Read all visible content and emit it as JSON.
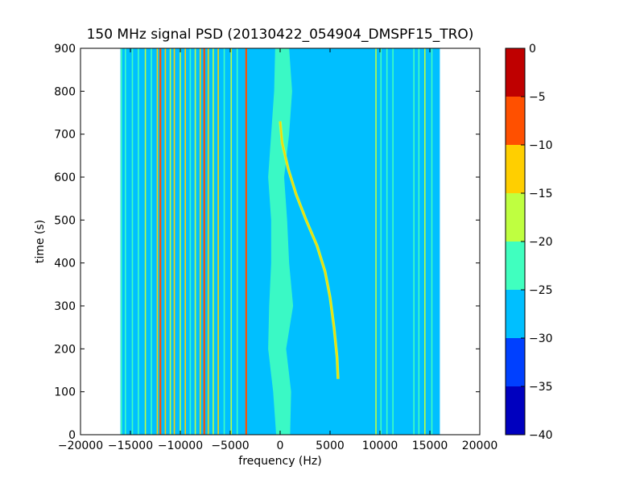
{
  "chart_data": {
    "type": "heatmap",
    "title": "150 MHz signal PSD (20130422_054904_DMSPF15_TRO)",
    "xlabel": "frequency (Hz)",
    "ylabel": "time (s)",
    "xlim": [
      -20000,
      20000
    ],
    "ylim": [
      0,
      900
    ],
    "data_extent_x": [
      -16000,
      16000
    ],
    "x_ticks": [
      -20000,
      -15000,
      -10000,
      -5000,
      0,
      5000,
      10000,
      15000,
      20000
    ],
    "x_tick_labels": [
      "−20000",
      "−15000",
      "−10000",
      "−5000",
      "0",
      "5000",
      "10000",
      "15000",
      "20000"
    ],
    "y_ticks": [
      0,
      100,
      200,
      300,
      400,
      500,
      600,
      700,
      800,
      900
    ],
    "y_tick_labels": [
      "0",
      "100",
      "200",
      "300",
      "400",
      "500",
      "600",
      "700",
      "800",
      "900"
    ],
    "background_level_dB": -27.5,
    "colorbar": {
      "levels": [
        -40,
        -35,
        -30,
        -25,
        -20,
        -15,
        -10,
        -5,
        0
      ],
      "tick_labels": [
        "−40",
        "−35",
        "−30",
        "−25",
        "−20",
        "−15",
        "−10",
        "−5",
        "0"
      ],
      "colors": [
        "#0000bf",
        "#0040ff",
        "#00bfff",
        "#40ffbf",
        "#bfff40",
        "#ffcf00",
        "#ff5000",
        "#bf0000"
      ]
    },
    "steady_tones": [
      {
        "freq_hz": -15900,
        "level_db": -22.5
      },
      {
        "freq_hz": -15500,
        "level_db": -22.5
      },
      {
        "freq_hz": -14800,
        "level_db": -22.5
      },
      {
        "freq_hz": -14200,
        "level_db": -22.5
      },
      {
        "freq_hz": -13500,
        "level_db": -17.5
      },
      {
        "freq_hz": -12900,
        "level_db": -22.5
      },
      {
        "freq_hz": -12300,
        "level_db": -12.5
      },
      {
        "freq_hz": -12000,
        "level_db": -7.5
      },
      {
        "freq_hz": -11500,
        "level_db": -12.5
      },
      {
        "freq_hz": -11000,
        "level_db": -17.5
      },
      {
        "freq_hz": -10600,
        "level_db": -12.5
      },
      {
        "freq_hz": -10000,
        "level_db": -17.5
      },
      {
        "freq_hz": -9500,
        "level_db": -12.5
      },
      {
        "freq_hz": -9000,
        "level_db": -22.5
      },
      {
        "freq_hz": -8500,
        "level_db": -17.5
      },
      {
        "freq_hz": -8000,
        "level_db": -12.5
      },
      {
        "freq_hz": -7600,
        "level_db": -7.5
      },
      {
        "freq_hz": -7200,
        "level_db": -12.5
      },
      {
        "freq_hz": -6700,
        "level_db": -17.5
      },
      {
        "freq_hz": -6200,
        "level_db": -12.5
      },
      {
        "freq_hz": -5600,
        "level_db": -22.5
      },
      {
        "freq_hz": -4900,
        "level_db": -17.5
      },
      {
        "freq_hz": -4300,
        "level_db": -22.5
      },
      {
        "freq_hz": -3400,
        "level_db": -7.5
      },
      {
        "freq_hz": 9600,
        "level_db": -17.5
      },
      {
        "freq_hz": 10100,
        "level_db": -22.5
      },
      {
        "freq_hz": 10700,
        "level_db": -22.5
      },
      {
        "freq_hz": 11300,
        "level_db": -22.5
      },
      {
        "freq_hz": 13400,
        "level_db": -22.5
      },
      {
        "freq_hz": 13900,
        "level_db": -22.5
      },
      {
        "freq_hz": 14500,
        "level_db": -17.5
      },
      {
        "freq_hz": 15200,
        "level_db": -22.5
      }
    ],
    "doppler_track": {
      "level_db": -12.5,
      "points": [
        {
          "t_s": 130,
          "freq_hz": 5800
        },
        {
          "t_s": 180,
          "freq_hz": 5700
        },
        {
          "t_s": 250,
          "freq_hz": 5400
        },
        {
          "t_s": 320,
          "freq_hz": 5000
        },
        {
          "t_s": 380,
          "freq_hz": 4500
        },
        {
          "t_s": 440,
          "freq_hz": 3700
        },
        {
          "t_s": 500,
          "freq_hz": 2600
        },
        {
          "t_s": 560,
          "freq_hz": 1600
        },
        {
          "t_s": 620,
          "freq_hz": 800
        },
        {
          "t_s": 680,
          "freq_hz": 200
        },
        {
          "t_s": 730,
          "freq_hz": 0
        }
      ]
    },
    "carrier_noise_band": {
      "level_db": -22.5,
      "points": [
        {
          "t_s": 0,
          "center_hz": 300,
          "halfwidth_hz": 700
        },
        {
          "t_s": 100,
          "center_hz": 200,
          "halfwidth_hz": 900
        },
        {
          "t_s": 200,
          "center_hz": -300,
          "halfwidth_hz": 900
        },
        {
          "t_s": 300,
          "center_hz": 100,
          "halfwidth_hz": 1200
        },
        {
          "t_s": 400,
          "center_hz": 0,
          "halfwidth_hz": 900
        },
        {
          "t_s": 500,
          "center_hz": -100,
          "halfwidth_hz": 800
        },
        {
          "t_s": 600,
          "center_hz": -400,
          "halfwidth_hz": 800
        },
        {
          "t_s": 700,
          "center_hz": 0,
          "halfwidth_hz": 900
        },
        {
          "t_s": 800,
          "center_hz": 300,
          "halfwidth_hz": 900
        },
        {
          "t_s": 900,
          "center_hz": 200,
          "halfwidth_hz": 700
        }
      ]
    }
  }
}
